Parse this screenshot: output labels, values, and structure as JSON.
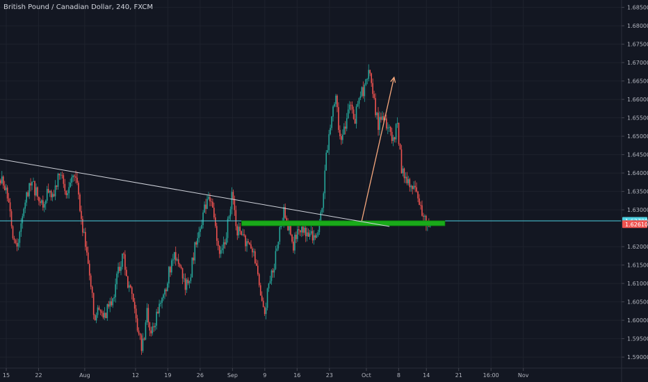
{
  "chart_data": {
    "type": "candlestick",
    "title": "British Pound / Canadian Dollar, 240, FXCM",
    "ylim": [
      1.587,
      1.687
    ],
    "y_ticks": [
      "1.68500",
      "1.68000",
      "1.67500",
      "1.67000",
      "1.66500",
      "1.66000",
      "1.65500",
      "1.65000",
      "1.64500",
      "1.64000",
      "1.63500",
      "1.63000",
      "1.62000",
      "1.61500",
      "1.61000",
      "1.60500",
      "1.60000",
      "1.59500",
      "1.59000"
    ],
    "x_ticks": [
      "15",
      "22",
      "Aug",
      "12",
      "19",
      "26",
      "Sep",
      "9",
      "16",
      "23",
      "Oct",
      "8",
      "14",
      "21",
      "16:00",
      "Nov"
    ],
    "price_badges": [
      {
        "label": "1.62700",
        "value": 1.627,
        "color": "#4dd0e1"
      },
      {
        "label": "1.62610",
        "value": 1.6261,
        "color": "#ef5350"
      }
    ],
    "up_color": "#26a69a",
    "down_color": "#ef5350",
    "price_path": [
      1.638,
      1.636,
      1.629,
      1.619,
      1.623,
      1.629,
      1.637,
      1.636,
      1.633,
      1.63,
      1.636,
      1.634,
      1.638,
      1.64,
      1.635,
      1.64,
      1.638,
      1.629,
      1.62,
      1.61,
      1.6,
      1.604,
      1.601,
      1.604,
      1.607,
      1.614,
      1.618,
      1.61,
      1.605,
      1.598,
      1.592,
      1.602,
      1.596,
      1.601,
      1.605,
      1.609,
      1.615,
      1.618,
      1.614,
      1.609,
      1.611,
      1.619,
      1.623,
      1.63,
      1.634,
      1.629,
      1.62,
      1.618,
      1.625,
      1.634,
      1.625,
      1.622,
      1.621,
      1.619,
      1.616,
      1.608,
      1.603,
      1.612,
      1.615,
      1.624,
      1.63,
      1.625,
      1.62,
      1.626,
      1.625,
      1.623,
      1.623,
      1.624,
      1.63,
      1.645,
      1.655,
      1.66,
      1.648,
      1.653,
      1.658,
      1.654,
      1.661,
      1.663,
      1.668,
      1.66,
      1.653,
      1.656,
      1.653,
      1.648,
      1.653,
      1.64,
      1.638,
      1.636,
      1.634,
      1.631,
      1.627,
      1.6261
    ],
    "annotations": {
      "trendline": {
        "from": {
          "date": "2019-07-08",
          "price": 1.645
        },
        "to": {
          "date": "2019-10-06",
          "price": 1.6255
        }
      },
      "support_zone": {
        "from_date": "2019-09-04",
        "to_date": "2019-10-18",
        "price_low": 1.6257,
        "price_high": 1.627
      },
      "horizontal_line": {
        "price": 1.627
      },
      "arrow": {
        "from": {
          "date": "2019-09-30",
          "price": 1.627
        },
        "to": {
          "date": "2019-10-07",
          "price": 1.666
        }
      }
    }
  }
}
